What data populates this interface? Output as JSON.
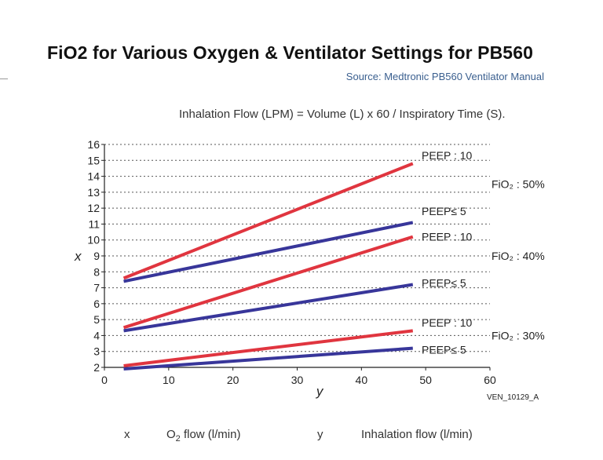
{
  "header": {
    "title": "FiO2 for Various Oxygen & Ventilator Settings for PB560",
    "source": "Source: Medtronic PB560 Ventilator Manual",
    "formula": "Inhalation Flow (LPM) = Volume (L) x 60 / Inspiratory Time (S)."
  },
  "legend_footer": {
    "x_key": "x",
    "x_desc_pre": "O",
    "x_desc_sub": "2",
    "x_desc_post": " flow (l/min)",
    "y_key": "y",
    "y_desc": "Inhalation flow (l/min)"
  },
  "figure_id": "VEN_10129_A",
  "colors": {
    "peep_10": "#e0353f",
    "peep_le_5": "#38369a",
    "grid": "#555555",
    "axis": "#222222"
  },
  "chart_data": {
    "type": "line",
    "xlabel": "y",
    "ylabel": "x",
    "xlim": [
      0,
      60
    ],
    "ylim": [
      2,
      16
    ],
    "x_ticks": [
      0,
      10,
      20,
      30,
      40,
      50,
      60
    ],
    "y_ticks": [
      2,
      3,
      4,
      5,
      6,
      7,
      8,
      9,
      10,
      11,
      12,
      13,
      14,
      15,
      16
    ],
    "grid": "horizontal-dotted",
    "series": [
      {
        "name": "PEEP : 10",
        "group": "FiO₂ : 50%",
        "kind": "peep_10",
        "x": [
          3,
          48
        ],
        "y": [
          7.6,
          14.8
        ]
      },
      {
        "name": "PEEP≤ 5",
        "group": "FiO₂ : 50%",
        "kind": "peep_le_5",
        "x": [
          3,
          48
        ],
        "y": [
          7.4,
          11.1
        ]
      },
      {
        "name": "PEEP : 10",
        "group": "FiO₂ : 40%",
        "kind": "peep_10",
        "x": [
          3,
          48
        ],
        "y": [
          4.5,
          10.2
        ]
      },
      {
        "name": "PEEP≤ 5",
        "group": "FiO₂ : 40%",
        "kind": "peep_le_5",
        "x": [
          3,
          48
        ],
        "y": [
          4.3,
          7.2
        ]
      },
      {
        "name": "PEEP : 10",
        "group": "FiO₂ : 30%",
        "kind": "peep_10",
        "x": [
          3,
          48
        ],
        "y": [
          2.1,
          4.3
        ]
      },
      {
        "name": "PEEP≤ 5",
        "group": "FiO₂ : 30%",
        "kind": "peep_le_5",
        "x": [
          3,
          48
        ],
        "y": [
          1.9,
          3.2
        ]
      }
    ],
    "annotations": [
      {
        "text": "PEEP : 10",
        "y": 15.3
      },
      {
        "text": "PEEP≤ 5",
        "y": 11.8
      },
      {
        "text": "PEEP : 10",
        "y": 10.2
      },
      {
        "text": "PEEP≤ 5",
        "y": 7.3
      },
      {
        "text": "PEEP : 10",
        "y": 4.8
      },
      {
        "text": "PEEP≤ 5",
        "y": 3.1
      }
    ],
    "groups": [
      {
        "text": "FiO₂ : 50%",
        "y": 13.5
      },
      {
        "text": "FiO₂ : 40%",
        "y": 9.0
      },
      {
        "text": "FiO₂ : 30%",
        "y": 4.0
      }
    ]
  }
}
